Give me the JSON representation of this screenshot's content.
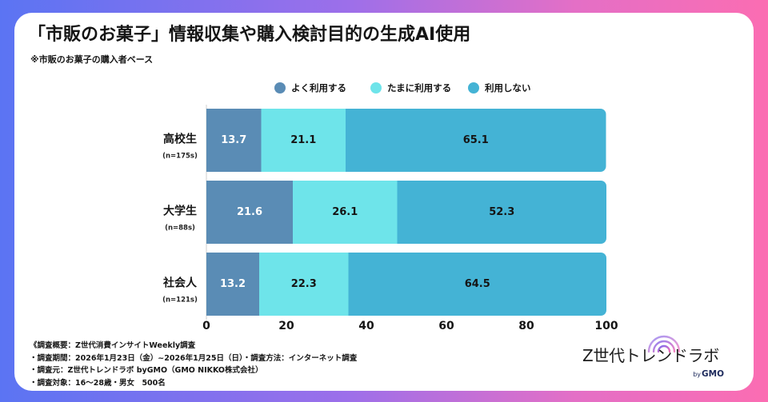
{
  "title": "「市販のお菓子」情報収集や購入検討目的の生成AI使用",
  "subtitle": "※市販のお菓子の購入者ベース",
  "colors": {
    "border_start": "#5b74f3",
    "border_mid": "#9c6fea",
    "border_mid2": "#e46fc6",
    "border_end": "#fb6db2",
    "text": "#151515",
    "logo_wave_start": "#7b6cf0",
    "logo_wave_end": "#f46db8"
  },
  "chart_data": {
    "type": "bar",
    "orientation": "horizontal",
    "stacked": true,
    "categories": [
      "高校生",
      "大学生",
      "社会人"
    ],
    "category_notes": [
      "(n=175s)",
      "(n=88s)",
      "(n=121s)"
    ],
    "series": [
      {
        "name": "よく利用する",
        "values": [
          13.7,
          21.6,
          13.2
        ],
        "color": "#5a8cb5",
        "label_color": "#ffffff"
      },
      {
        "name": "たまに利用する",
        "values": [
          21.1,
          26.1,
          22.3
        ],
        "color": "#6ee4ea",
        "label_color": "#151515"
      },
      {
        "name": "利用しない",
        "values": [
          65.1,
          52.3,
          64.5
        ],
        "color": "#44b3d5",
        "label_color": "#151515"
      }
    ],
    "xlim": [
      0,
      100
    ],
    "xticks": [
      0,
      20,
      40,
      60,
      80,
      100
    ],
    "grid": false,
    "legend_position": "top-center"
  },
  "footer": {
    "lines": [
      "《調査概要：Z世代消費インサイトWeekly調査",
      "・調査期間：2026年1月23日（金）~2026年1月25日（日）・調査方法：インターネット調査",
      "・調査元：Z世代トレンドラボ byGMO（GMO NIKKO株式会社）",
      "・調査対象：16～28歳・男女　500名"
    ]
  },
  "logo": {
    "name": "Z世代トレンドラボ",
    "by": "by",
    "brand": "GMO"
  }
}
